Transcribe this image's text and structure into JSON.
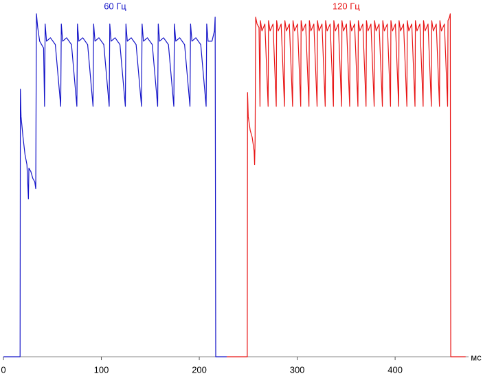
{
  "chart_data": {
    "type": "line",
    "xlabel": "мс",
    "xlim": [
      0,
      475
    ],
    "xticks": [
      0,
      100,
      200,
      300,
      400
    ],
    "ylim": [
      0,
      100
    ],
    "series": [
      {
        "name": "60 Гц",
        "color": "#1414c8",
        "x": [
          0,
          17,
          17.3,
          18,
          20,
          22,
          24,
          25.5,
          26,
          28,
          30,
          32,
          33,
          33.7,
          35,
          37,
          39,
          41,
          42,
          42.6,
          44,
          48,
          53,
          58.5,
          59.1,
          60.5,
          64.5,
          69.5,
          75,
          75.6,
          77,
          81,
          86,
          91.5,
          92.1,
          93.5,
          97.5,
          102.5,
          108,
          108.6,
          110,
          114,
          119,
          124.5,
          125.1,
          126.5,
          130.5,
          135.5,
          141,
          141.6,
          143,
          147,
          152,
          157.5,
          158.1,
          159.5,
          163.5,
          168.5,
          174,
          174.6,
          176,
          180,
          185,
          190.5,
          191.1,
          192.5,
          196.5,
          201.5,
          207,
          207.6,
          209,
          213,
          215.5,
          216.2,
          216.8,
          228
        ],
        "values": [
          0,
          0,
          78,
          70,
          64,
          59,
          56,
          46,
          55,
          54,
          52,
          51,
          49,
          100,
          96,
          92,
          91,
          90,
          73,
          97,
          92,
          93,
          91,
          73,
          97,
          92,
          93,
          91,
          73,
          97,
          92,
          93,
          91,
          73,
          97,
          92,
          93,
          91,
          73,
          97,
          92,
          93,
          91,
          73,
          97,
          92,
          93,
          91,
          73,
          97,
          92,
          93,
          91,
          73,
          97,
          92,
          93,
          91,
          73,
          97,
          92,
          93,
          91,
          73,
          97,
          92,
          93,
          91,
          73,
          97,
          92,
          92,
          95,
          99,
          0,
          0
        ]
      },
      {
        "name": "120 Гц",
        "color": "#e81414",
        "x": [
          228,
          249,
          249.3,
          250,
          252,
          254,
          256,
          256.5,
          257,
          257.6,
          259,
          261,
          262,
          262.4,
          264,
          267,
          270.3,
          270.7,
          272.3,
          275.3,
          278.6,
          279,
          280.6,
          283.6,
          287,
          287.4,
          289,
          292,
          295.3,
          295.7,
          297.3,
          300.3,
          303.6,
          304,
          305.6,
          308.6,
          312,
          312.4,
          314,
          317,
          320.3,
          320.7,
          322.3,
          325.3,
          328.6,
          329,
          330.6,
          333.6,
          337,
          337.4,
          339,
          342,
          345.3,
          345.7,
          347.3,
          350.3,
          353.6,
          354,
          355.6,
          358.6,
          362,
          362.4,
          364,
          367,
          370.3,
          370.7,
          372.3,
          375.3,
          378.6,
          379,
          380.6,
          383.6,
          387,
          387.4,
          389,
          392,
          395.3,
          395.7,
          397.3,
          400.3,
          403.6,
          404,
          405.6,
          408.6,
          412,
          412.4,
          414,
          417,
          420.3,
          420.7,
          422.3,
          425.3,
          428.6,
          429,
          430.6,
          433.6,
          437,
          437.4,
          439,
          442,
          445.3,
          445.7,
          447.3,
          450.3,
          453.6,
          454,
          455.5,
          456.3,
          456.8,
          472
        ],
        "values": [
          0,
          0,
          77,
          70,
          66,
          64,
          60,
          56,
          63,
          99,
          97,
          96,
          73,
          98,
          95,
          97,
          73,
          98,
          95,
          97,
          73,
          98,
          95,
          97,
          73,
          98,
          95,
          97,
          73,
          98,
          95,
          97,
          73,
          98,
          95,
          97,
          73,
          98,
          95,
          97,
          73,
          98,
          95,
          97,
          73,
          98,
          95,
          97,
          73,
          98,
          95,
          97,
          73,
          98,
          95,
          97,
          73,
          98,
          95,
          97,
          73,
          98,
          95,
          97,
          73,
          98,
          95,
          97,
          73,
          98,
          95,
          97,
          73,
          98,
          95,
          97,
          73,
          98,
          95,
          97,
          73,
          98,
          95,
          97,
          73,
          98,
          95,
          97,
          73,
          98,
          95,
          97,
          73,
          98,
          95,
          97,
          73,
          98,
          95,
          97,
          73,
          98,
          95,
          97,
          73,
          98,
          99,
          100,
          0,
          0
        ]
      }
    ]
  }
}
